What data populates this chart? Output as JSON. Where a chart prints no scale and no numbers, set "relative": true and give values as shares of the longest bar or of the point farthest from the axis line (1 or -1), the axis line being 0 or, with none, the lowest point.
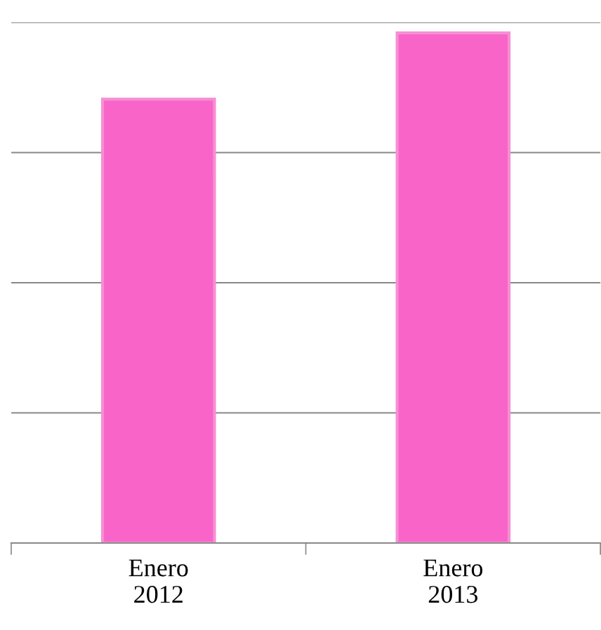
{
  "chart_data": {
    "type": "bar",
    "relative": true,
    "categories": [
      "Enero\n2012",
      "Enero\n2013"
    ],
    "values": [
      0.87,
      1
    ],
    "color": "#f964c8",
    "grid": "y"
  }
}
